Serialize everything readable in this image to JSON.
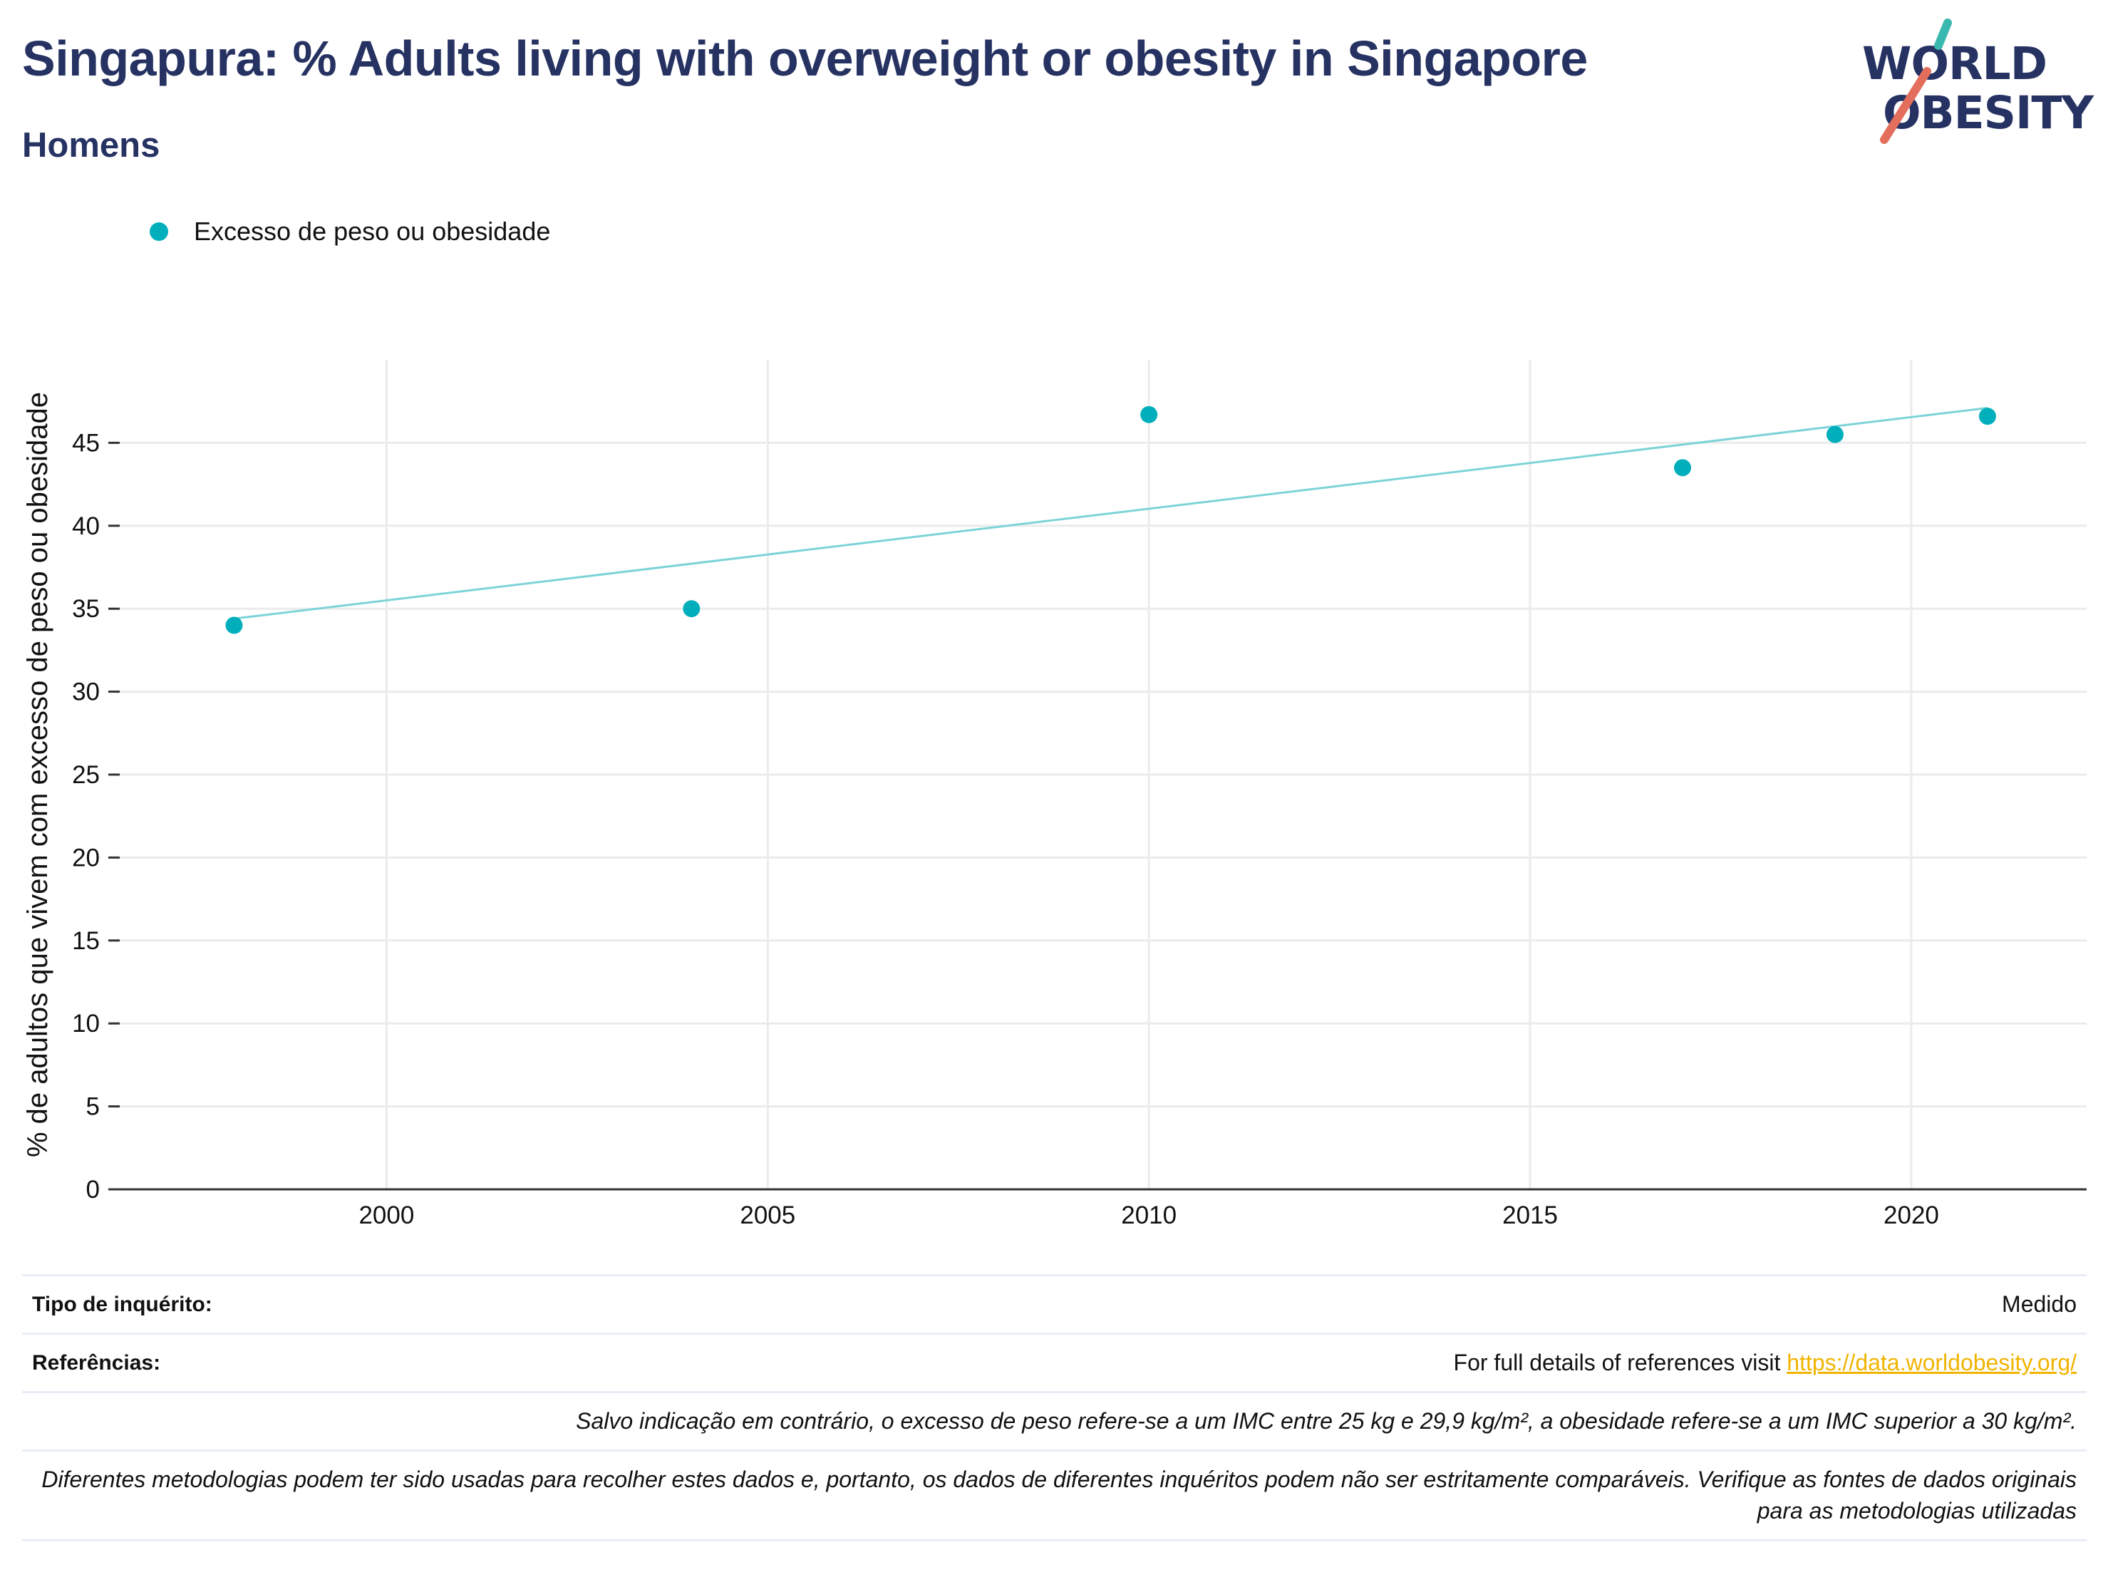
{
  "header": {
    "title": "Singapura: % Adults living with overweight or obesity in Singapore",
    "subtitle": "Homens"
  },
  "logo": {
    "line1": "WORLD",
    "line2": "OBESITY",
    "colors": {
      "text": "#263262",
      "accent_teal": "#39B8AF",
      "accent_red": "#E36E5C"
    }
  },
  "legend": {
    "label": "Excesso de peso ou obesidade"
  },
  "chart_data": {
    "type": "scatter",
    "title": "",
    "xlabel": "",
    "ylabel": "% de adultos que vivem com excesso de peso ou obesidade",
    "xlim": [
      1996.5,
      2022.3
    ],
    "ylim": [
      0,
      50
    ],
    "xticks": [
      2000,
      2005,
      2010,
      2015,
      2020
    ],
    "yticks": [
      0,
      5,
      10,
      15,
      20,
      25,
      30,
      35,
      40,
      45
    ],
    "grid": true,
    "legend_position": "top-left",
    "series": [
      {
        "name": "Excesso de peso ou obesidade",
        "color": "#00AFBB",
        "points": [
          {
            "x": 1998,
            "y": 34
          },
          {
            "x": 2004,
            "y": 35
          },
          {
            "x": 2010,
            "y": 46.7
          },
          {
            "x": 2017,
            "y": 43.5
          },
          {
            "x": 2019,
            "y": 45.5
          },
          {
            "x": 2021,
            "y": 46.6
          }
        ]
      }
    ],
    "trendline": {
      "color": "#7DD3D8",
      "x": [
        1998,
        2021
      ],
      "y": [
        34.4,
        47.1
      ]
    },
    "colors": {
      "grid": "#ebebeb",
      "axis": "#333333"
    }
  },
  "footer": {
    "survey_type_label": "Tipo de inquérito:",
    "survey_type_value": "Medido",
    "references_label": "Referências:",
    "references_text": "For full details of references visit ",
    "references_link": "https://data.worldobesity.org/",
    "note_bmi": "Salvo indicação em contrário, o excesso de peso refere-se a um IMC entre 25 kg e 29,9 kg/m², a obesidade refere-se a um IMC superior a 30 kg/m².",
    "note_methods": "Diferentes metodologias podem ter sido usadas para recolher estes dados e, portanto, os dados de diferentes inquéritos podem não ser estritamente comparáveis. Verifique as fontes de dados originais para as metodologias utilizadas"
  }
}
